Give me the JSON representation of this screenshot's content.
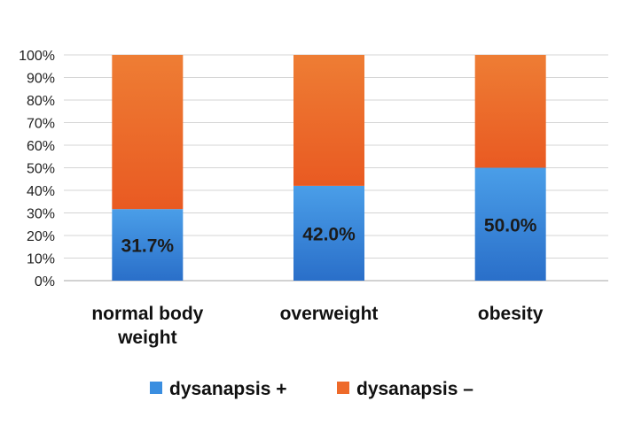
{
  "chart_data": {
    "type": "bar",
    "stacked": true,
    "percent_stacked": true,
    "categories": [
      [
        "normal body",
        "weight"
      ],
      [
        "overweight"
      ],
      [
        "obesity"
      ]
    ],
    "series": [
      {
        "name": "dysanapsis +",
        "values": [
          31.7,
          42.0,
          50.0
        ],
        "color": "#3a8ee0",
        "data_labels": [
          "31.7%",
          "42.0%",
          "50.0%"
        ]
      },
      {
        "name": "dysanapsis –",
        "values": [
          68.3,
          58.0,
          50.0
        ],
        "color": "#ee6a2a"
      }
    ],
    "ylim": [
      0,
      100
    ],
    "yticks": [
      "0%",
      "10%",
      "20%",
      "30%",
      "40%",
      "50%",
      "60%",
      "70%",
      "80%",
      "90%",
      "100%"
    ],
    "grid": true,
    "legend_position": "bottom"
  }
}
